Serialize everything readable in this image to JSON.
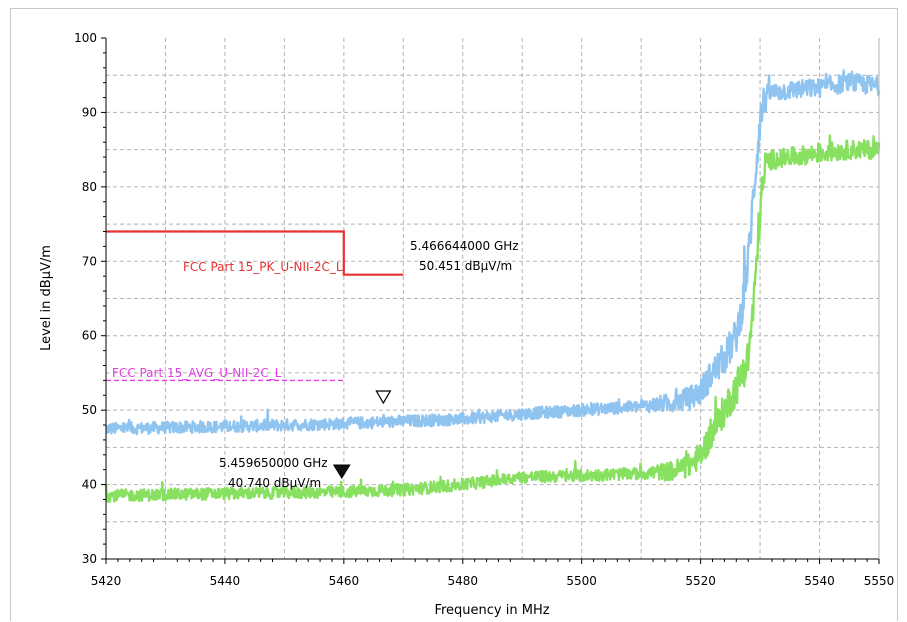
{
  "chart_data": {
    "type": "line",
    "xlabel": "Frequency in MHz",
    "ylabel": "Level in dBµV/m",
    "xlim": [
      5420,
      5550
    ],
    "ylim": [
      30,
      100
    ],
    "x_ticks": [
      5420,
      5440,
      5460,
      5480,
      5500,
      5520,
      5540,
      5550
    ],
    "y_ticks": [
      30,
      40,
      50,
      60,
      70,
      80,
      90,
      100
    ],
    "grid": true,
    "series": [
      {
        "name": "",
        "color": "#8fc3f0",
        "style": "noisy",
        "x": [
          5420,
          5440,
          5460,
          5480,
          5490,
          5500,
          5510,
          5515,
          5518,
          5520,
          5522,
          5524,
          5526,
          5527,
          5528,
          5529,
          5530,
          5531,
          5535,
          5540,
          5545,
          5550
        ],
        "values": [
          47.5,
          47.8,
          48.2,
          48.8,
          49.5,
          50.0,
          50.5,
          51.0,
          51.5,
          52.5,
          55.0,
          57.0,
          60.0,
          64.0,
          70.0,
          80.0,
          89.0,
          92.5,
          93.0,
          93.3,
          94.0,
          93.5
        ]
      },
      {
        "name": "",
        "color": "#88e060",
        "style": "noisy",
        "x": [
          5420,
          5440,
          5460,
          5470,
          5480,
          5490,
          5500,
          5510,
          5515,
          5518,
          5520,
          5522,
          5524,
          5526,
          5528,
          5529,
          5530,
          5531,
          5535,
          5540,
          5545,
          5550
        ],
        "values": [
          38.5,
          38.8,
          39.0,
          39.3,
          40.0,
          41.0,
          41.2,
          41.5,
          41.8,
          42.5,
          44.0,
          47.0,
          50.0,
          53.0,
          57.0,
          65.0,
          77.0,
          83.5,
          84.0,
          84.5,
          85.0,
          85.0
        ]
      }
    ],
    "limit_lines": [
      {
        "label": "FCC Part 15_PK_U-NII-2C_L",
        "color": "#e83030",
        "style": "solid",
        "points": [
          [
            5420,
            74
          ],
          [
            5460,
            74
          ],
          [
            5460,
            68.2
          ],
          [
            5470,
            68.2
          ]
        ]
      },
      {
        "label": "FCC Part 15_AVG_U-NII-2C_L",
        "color": "#e040e0",
        "style": "dashed",
        "points": [
          [
            5420,
            54
          ],
          [
            5460,
            54
          ]
        ]
      }
    ],
    "markers": [
      {
        "kind": "hollow-triangle",
        "x": 5466.644,
        "y": 50.451,
        "freq_text": "5.466644000 GHz",
        "level_text": "50.451 dBµV/m"
      },
      {
        "kind": "filled-triangle",
        "x": 5459.65,
        "y": 40.74,
        "freq_text": "5.459650000 GHz",
        "level_text": "40.740 dBµV/m"
      }
    ]
  }
}
